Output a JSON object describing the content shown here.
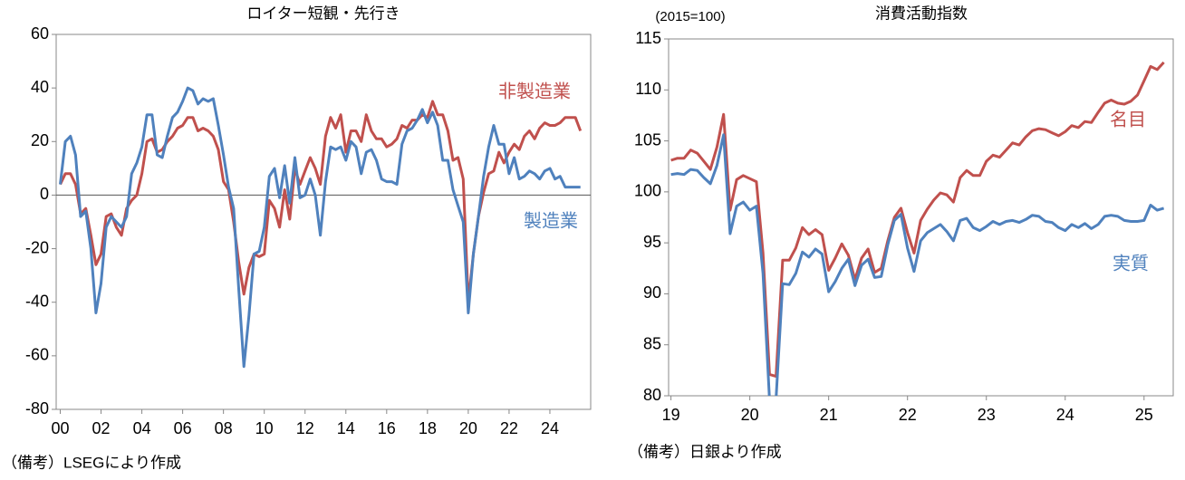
{
  "chart_data": [
    {
      "type": "line",
      "title": "ロイター短観・先行き",
      "note": "（備考）LSEGにより作成",
      "x": [
        2000,
        2000.25,
        2000.5,
        2000.75,
        2001,
        2001.25,
        2001.5,
        2001.75,
        2002,
        2002.25,
        2002.5,
        2002.75,
        2003,
        2003.25,
        2003.5,
        2003.75,
        2004,
        2004.25,
        2004.5,
        2004.75,
        2005,
        2005.25,
        2005.5,
        2005.75,
        2006,
        2006.25,
        2006.5,
        2006.75,
        2007,
        2007.25,
        2007.5,
        2007.75,
        2008,
        2008.25,
        2008.5,
        2008.75,
        2009,
        2009.25,
        2009.5,
        2009.75,
        2010,
        2010.25,
        2010.5,
        2010.75,
        2011,
        2011.25,
        2011.5,
        2011.75,
        2012,
        2012.25,
        2012.5,
        2012.75,
        2013,
        2013.25,
        2013.5,
        2013.75,
        2014,
        2014.25,
        2014.5,
        2014.75,
        2015,
        2015.25,
        2015.5,
        2015.75,
        2016,
        2016.25,
        2016.5,
        2016.75,
        2017,
        2017.25,
        2017.5,
        2017.75,
        2018,
        2018.25,
        2018.5,
        2018.75,
        2019,
        2019.25,
        2019.5,
        2019.75,
        2020,
        2020.25,
        2020.5,
        2020.75,
        2021,
        2021.25,
        2021.5,
        2021.75,
        2022,
        2022.25,
        2022.5,
        2022.75,
        2023,
        2023.25,
        2023.5,
        2023.75,
        2024,
        2024.25,
        2024.5,
        2024.75,
        2025,
        2025.25,
        2025.5
      ],
      "series": [
        {
          "name": "非製造業",
          "color": "#c0504d",
          "values": [
            4,
            8,
            8,
            4,
            -7,
            -5,
            -15,
            -26,
            -22,
            -8,
            -7,
            -12,
            -15,
            -5,
            -2,
            0,
            8,
            20,
            21,
            16,
            17,
            20,
            22,
            25,
            26,
            29,
            29,
            24,
            25,
            24,
            22,
            17,
            5,
            2,
            -10,
            -25,
            -37,
            -27,
            -22,
            -23,
            -22,
            -2,
            -5,
            -12,
            2,
            -9,
            10,
            4,
            9,
            14,
            10,
            4,
            22,
            29,
            25,
            30,
            16,
            24,
            24,
            20,
            30,
            24,
            21,
            21,
            18,
            19,
            21,
            26,
            25,
            28,
            28,
            30,
            29,
            35,
            30,
            30,
            24,
            13,
            14,
            6,
            -40,
            -22,
            -8,
            1,
            8,
            9,
            16,
            12,
            16,
            19,
            17,
            22,
            24,
            21,
            25,
            27,
            26,
            26,
            27,
            29,
            29,
            29,
            24
          ]
        },
        {
          "name": "製造業",
          "color": "#4f81bd",
          "values": [
            4,
            20,
            22,
            15,
            -8,
            -6,
            -20,
            -44,
            -33,
            -12,
            -8,
            -10,
            -12,
            -8,
            8,
            12,
            18,
            30,
            30,
            15,
            14,
            22,
            29,
            31,
            35,
            40,
            39,
            34,
            36,
            35,
            36,
            26,
            15,
            3,
            -5,
            -35,
            -64,
            -45,
            -22,
            -21,
            -12,
            7,
            10,
            -1,
            11,
            -3,
            14,
            -1,
            0,
            6,
            0,
            -15,
            5,
            18,
            17,
            18,
            13,
            20,
            18,
            8,
            16,
            17,
            13,
            6,
            5,
            5,
            4,
            19,
            24,
            25,
            28,
            32,
            27,
            31,
            26,
            13,
            13,
            2,
            -4,
            -10,
            -44,
            -22,
            -8,
            7,
            18,
            26,
            19,
            19,
            8,
            14,
            6,
            7,
            9,
            8,
            6,
            9,
            10,
            6,
            7,
            3,
            3,
            3,
            3
          ]
        }
      ],
      "xlim": [
        1999.8,
        2026
      ],
      "xticks": [
        {
          "value": 2000,
          "label": "00"
        },
        {
          "value": 2002,
          "label": "02"
        },
        {
          "value": 2004,
          "label": "04"
        },
        {
          "value": 2006,
          "label": "06"
        },
        {
          "value": 2008,
          "label": "08"
        },
        {
          "value": 2010,
          "label": "10"
        },
        {
          "value": 2012,
          "label": "12"
        },
        {
          "value": 2014,
          "label": "14"
        },
        {
          "value": 2016,
          "label": "16"
        },
        {
          "value": 2018,
          "label": "18"
        },
        {
          "value": 2020,
          "label": "20"
        },
        {
          "value": 2022,
          "label": "22"
        },
        {
          "value": 2024,
          "label": "24"
        }
      ],
      "ylim": [
        -80,
        60
      ],
      "yticks": [
        -80,
        -60,
        -40,
        -20,
        0,
        20,
        40,
        60
      ],
      "grid": false,
      "zero_line": true
    },
    {
      "type": "line",
      "title": "消費活動指数",
      "ylabel": "(2015=100)",
      "note": "（備考）日銀より作成",
      "x": [
        2019,
        2019.083,
        2019.167,
        2019.25,
        2019.333,
        2019.417,
        2019.5,
        2019.583,
        2019.667,
        2019.75,
        2019.833,
        2019.917,
        2020,
        2020.083,
        2020.167,
        2020.25,
        2020.333,
        2020.417,
        2020.5,
        2020.583,
        2020.667,
        2020.75,
        2020.833,
        2020.917,
        2021,
        2021.083,
        2021.167,
        2021.25,
        2021.333,
        2021.417,
        2021.5,
        2021.583,
        2021.667,
        2021.75,
        2021.833,
        2021.917,
        2022,
        2022.083,
        2022.167,
        2022.25,
        2022.333,
        2022.417,
        2022.5,
        2022.583,
        2022.667,
        2022.75,
        2022.833,
        2022.917,
        2023,
        2023.083,
        2023.167,
        2023.25,
        2023.333,
        2023.417,
        2023.5,
        2023.583,
        2023.667,
        2023.75,
        2023.833,
        2023.917,
        2024,
        2024.083,
        2024.167,
        2024.25,
        2024.333,
        2024.417,
        2024.5,
        2024.583,
        2024.667,
        2024.75,
        2024.833,
        2024.917,
        2025,
        2025.083,
        2025.167,
        2025.25
      ],
      "series": [
        {
          "name": "名目",
          "color": "#c0504d",
          "values": [
            103.1,
            103.3,
            103.3,
            104.1,
            103.8,
            103.0,
            102.2,
            104.4,
            107.6,
            98.2,
            101.2,
            101.6,
            101.3,
            101.0,
            94.0,
            82.1,
            81.9,
            93.3,
            93.3,
            94.5,
            96.5,
            95.8,
            96.3,
            95.8,
            92.3,
            93.5,
            94.9,
            93.8,
            91.4,
            93.5,
            94.4,
            92.1,
            92.5,
            95.2,
            97.5,
            98.4,
            96.0,
            94.0,
            97.2,
            98.3,
            99.2,
            99.9,
            99.7,
            99.0,
            101.4,
            102.1,
            101.6,
            101.6,
            103.0,
            103.6,
            103.4,
            104.1,
            104.8,
            104.6,
            105.4,
            106.0,
            106.2,
            106.1,
            105.8,
            105.5,
            105.9,
            106.5,
            106.3,
            106.9,
            106.8,
            107.8,
            108.7,
            109.0,
            108.7,
            108.6,
            108.9,
            109.5,
            110.9,
            112.3,
            112.0,
            112.7
          ]
        },
        {
          "name": "実質",
          "color": "#4f81bd",
          "values": [
            101.7,
            101.8,
            101.7,
            102.2,
            102.1,
            101.4,
            100.8,
            102.6,
            105.6,
            95.9,
            98.6,
            99.0,
            98.2,
            98.6,
            92.0,
            79.6,
            79.7,
            91.0,
            90.9,
            92.0,
            94.1,
            93.6,
            94.4,
            93.9,
            90.2,
            91.2,
            92.5,
            93.4,
            90.8,
            92.8,
            93.4,
            91.6,
            91.7,
            94.8,
            97.2,
            97.8,
            94.5,
            92.2,
            95.2,
            96.0,
            96.4,
            96.8,
            96.1,
            95.2,
            97.2,
            97.4,
            96.5,
            96.2,
            96.6,
            97.1,
            96.8,
            97.1,
            97.2,
            97.0,
            97.3,
            97.7,
            97.6,
            97.1,
            97.0,
            96.5,
            96.2,
            96.8,
            96.5,
            96.9,
            96.4,
            96.8,
            97.6,
            97.7,
            97.6,
            97.2,
            97.1,
            97.1,
            97.2,
            98.7,
            98.2,
            98.4
          ]
        }
      ],
      "xlim": [
        2018.97,
        2025.37
      ],
      "xticks": [
        {
          "value": 2019,
          "label": "19"
        },
        {
          "value": 2020,
          "label": "20"
        },
        {
          "value": 2021,
          "label": "21"
        },
        {
          "value": 2022,
          "label": "22"
        },
        {
          "value": 2023,
          "label": "23"
        },
        {
          "value": 2024,
          "label": "24"
        },
        {
          "value": 2025,
          "label": "25"
        }
      ],
      "ylim": [
        80,
        115
      ],
      "yticks": [
        80,
        85,
        90,
        95,
        100,
        105,
        110,
        115
      ],
      "grid": false
    }
  ]
}
